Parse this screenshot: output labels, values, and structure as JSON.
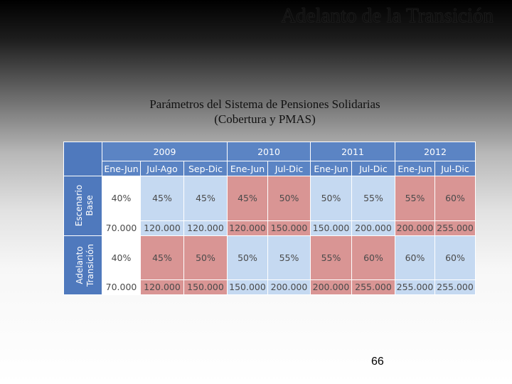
{
  "slide": {
    "title": "Adelanto de la Transición",
    "subtitle_line1": "Parámetros del Sistema de Pensiones Solidarias",
    "subtitle_line2": "(Cobertura y PMAS)",
    "page_number": "66"
  },
  "table": {
    "years": [
      "2009",
      "2010",
      "2011",
      "2012"
    ],
    "periods": [
      "Ene-Jun",
      "Jul-Ago",
      "Sep-Dic",
      "Ene-Jun",
      "Jul-Dic",
      "Ene-Jun",
      "Jul-Dic",
      "Ene-Jun",
      "Jul-Dic"
    ],
    "scenarios": [
      {
        "label_line1": "Escenario",
        "label_line2": "Base",
        "coverage": [
          "40%",
          "45%",
          "45%",
          "45%",
          "50%",
          "50%",
          "55%",
          "55%",
          "60%"
        ],
        "pmas": [
          "70.000",
          "120.000",
          "120.000",
          "120.000",
          "150.000",
          "150.000",
          "200.000",
          "200.000",
          "255.000"
        ]
      },
      {
        "label_line1": "Adelanto",
        "label_line2": "Transición",
        "coverage": [
          "40%",
          "45%",
          "50%",
          "50%",
          "55%",
          "55%",
          "60%",
          "60%",
          "60%"
        ],
        "pmas": [
          "70.000",
          "120.000",
          "150.000",
          "150.000",
          "200.000",
          "200.000",
          "255.000",
          "255.000",
          "255.000"
        ]
      }
    ]
  },
  "colors": {
    "header_blue": "#5b84c4",
    "cell_light_blue": "#c5d9f1",
    "cell_red": "#d99594",
    "cell_white": "#ffffff"
  }
}
